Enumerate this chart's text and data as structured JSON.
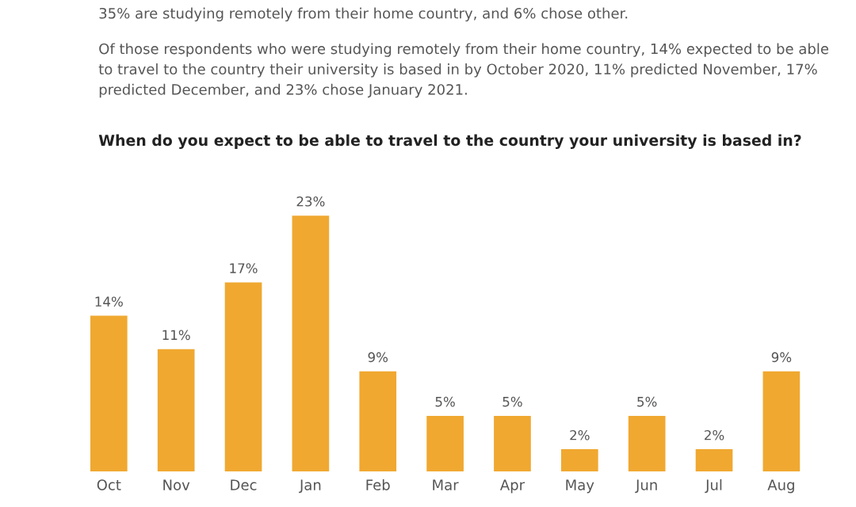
{
  "chart_data": {
    "type": "bar",
    "title": "When do you expect to be able to travel to the country your university is based in?",
    "subtitle": "Of those respondents who were studying remotely from their home country, 14% expected to be able to travel to the country their university is based in by October 2020, 11% predicted November, 17% predicted December, and 23% chose January 2021.",
    "annotations": [
      "35% are studying remotely from their home country, and 6% chose other."
    ],
    "categories": [
      "Oct",
      "Nov",
      "Dec",
      "Jan",
      "Feb",
      "Mar",
      "Apr",
      "May",
      "Jun",
      "Jul",
      "Aug"
    ],
    "values": [
      14,
      11,
      17,
      23,
      9,
      5,
      5,
      2,
      5,
      2,
      9
    ],
    "value_labels": [
      "14%",
      "11%",
      "17%",
      "23%",
      "9%",
      "5%",
      "5%",
      "2%",
      "5%",
      "2%",
      "9%"
    ],
    "color": "#f0a830",
    "grid": false
  }
}
